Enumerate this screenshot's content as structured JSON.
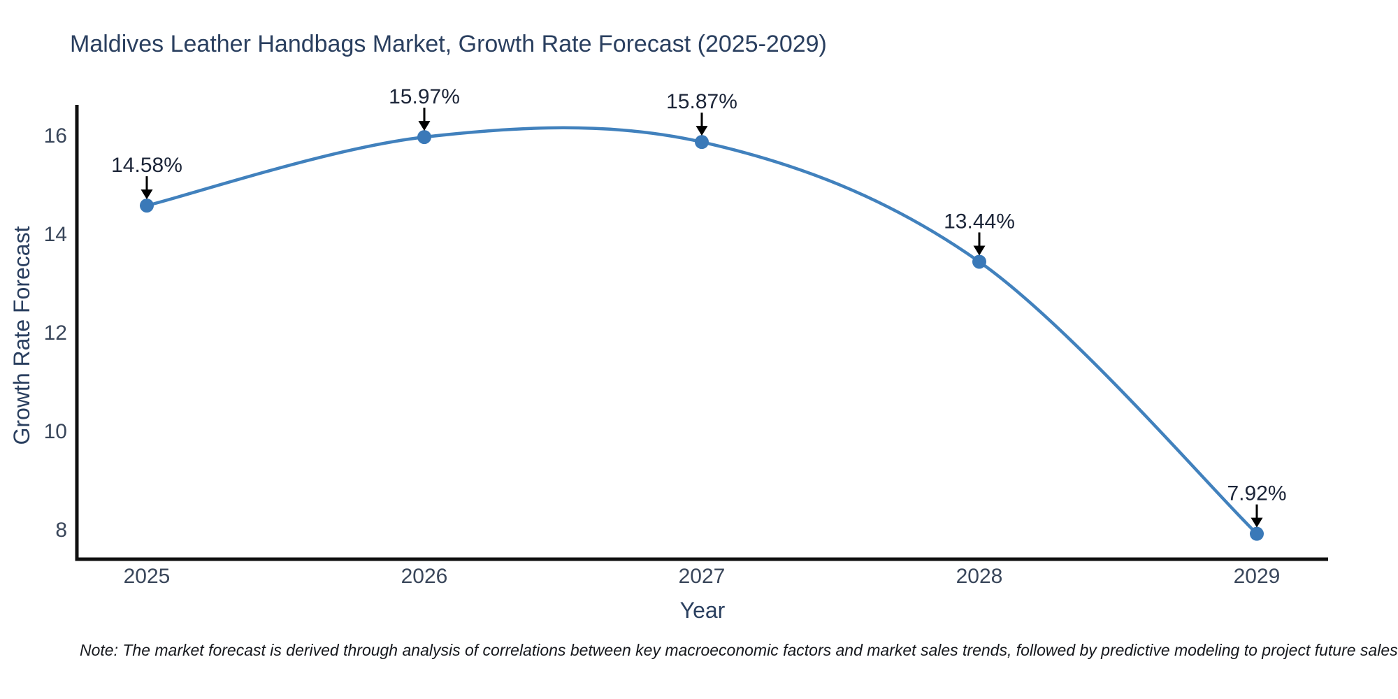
{
  "chart_data": {
    "type": "line",
    "line_shape": "spline",
    "title": "Maldives Leather Handbags Market, Growth Rate Forecast (2025-2029)",
    "xlabel": "Year",
    "ylabel": "Growth Rate Forecast",
    "x": [
      2025,
      2026,
      2027,
      2028,
      2029
    ],
    "series": [
      {
        "name": "Growth Rate Forecast",
        "values": [
          14.58,
          15.97,
          15.87,
          13.44,
          7.92
        ]
      }
    ],
    "point_labels": [
      "14.58%",
      "15.97%",
      "15.87%",
      "13.44%",
      "7.92%"
    ],
    "xticks": [
      "2025",
      "2026",
      "2027",
      "2028",
      "2029"
    ],
    "yticks": [
      8,
      10,
      12,
      14,
      16
    ],
    "xlim": [
      2024.75,
      2029.26
    ],
    "ylim": [
      7.4,
      16.62
    ],
    "grid": false,
    "legend": "none",
    "colors": {
      "line": "#4181bd",
      "marker": "#3a79b8",
      "axis": "#0f0f0f",
      "title_text": "#2a3f5f",
      "tick_text": "#39465a",
      "annotation_text": "#1c2538",
      "arrow": "#000000",
      "background": "#ffffff"
    },
    "note": "Note: The market forecast is derived through analysis of correlations between key macroeconomic factors and market sales trends, followed by predictive modeling to project future sales"
  }
}
